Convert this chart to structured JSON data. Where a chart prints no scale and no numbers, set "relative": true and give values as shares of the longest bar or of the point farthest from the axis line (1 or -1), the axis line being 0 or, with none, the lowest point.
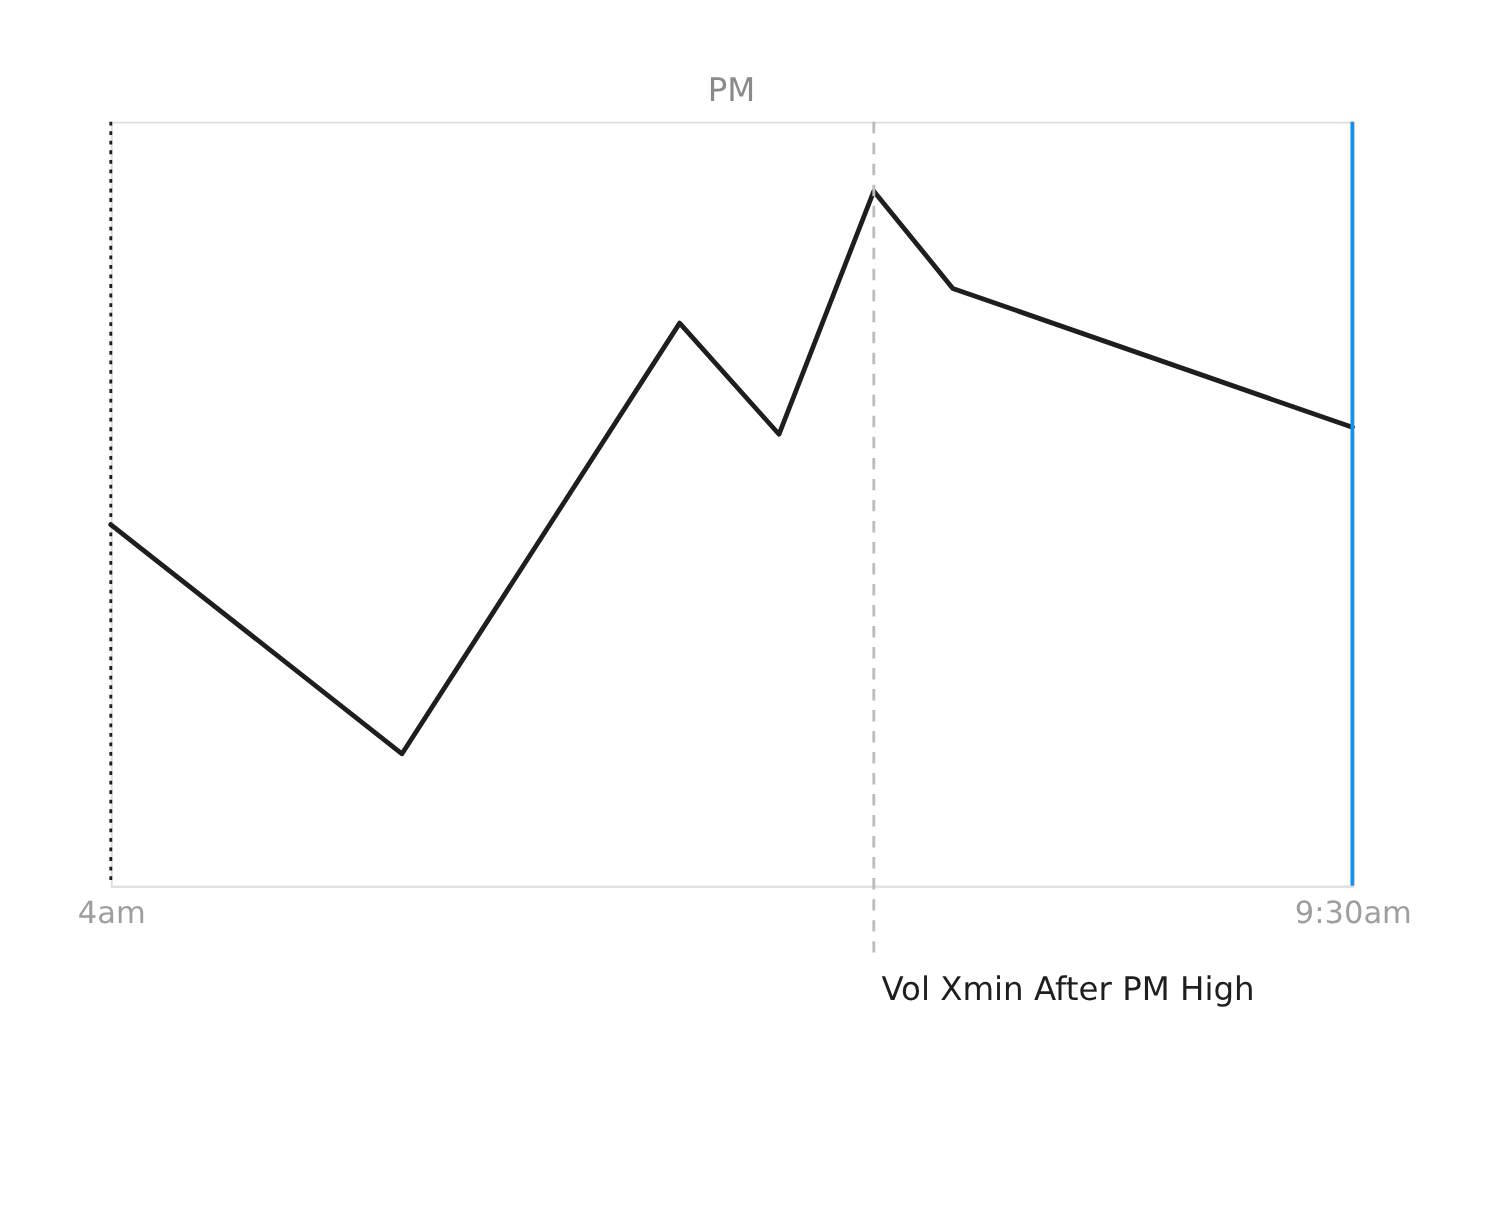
{
  "chart_data": {
    "type": "line",
    "title": "PM",
    "relative": true,
    "x": [
      4,
      5.29,
      6.52,
      6.96,
      7.38,
      7.73,
      9.5
    ],
    "series": [
      {
        "color": "#1e1e1e",
        "values": [
          0.52,
          0.19,
          0.81,
          0.65,
          1,
          0.86,
          0.66
        ]
      }
    ],
    "xlim": [
      4,
      9.5
    ],
    "xticks": [
      {
        "value": 4,
        "label": "4am"
      },
      {
        "value": 9.5,
        "label": "9:30am"
      }
    ],
    "ref_lines": [
      {
        "axis": "x",
        "value": 4,
        "color": "#1e1e1e",
        "line_style": "dotted"
      },
      {
        "axis": "x",
        "value": 9.5,
        "color": "#1c8ee6",
        "line_style": "solid"
      },
      {
        "axis": "x",
        "value": 7.38,
        "color": "#bdbdbd",
        "line_style": "dashed"
      }
    ],
    "annotations": [
      "Vol Xmin After PM High"
    ],
    "marker": "none",
    "line_style": "solid",
    "grid": false
  }
}
